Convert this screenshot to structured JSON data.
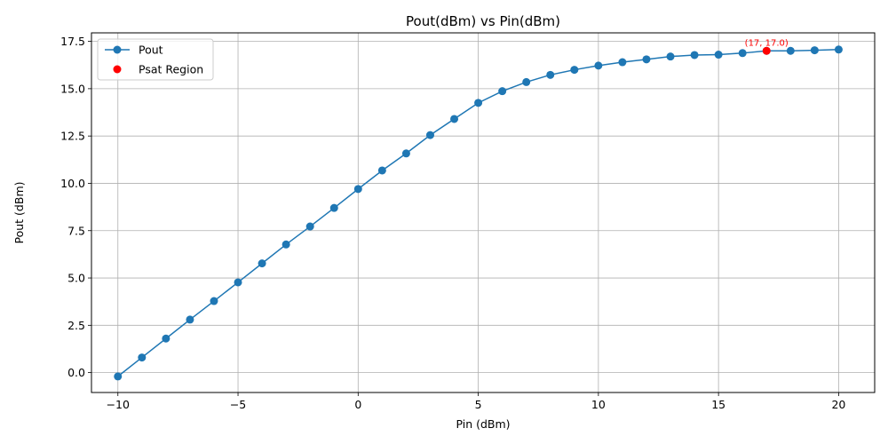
{
  "chart_data": {
    "type": "line",
    "title": "Pout(dBm) vs Pin(dBm)",
    "xlabel": "Pin (dBm)",
    "ylabel": "Pout (dBm)",
    "xlim": [
      -11.1,
      21.5
    ],
    "ylim": [
      -1.05,
      17.95
    ],
    "xticks": [
      -10,
      -5,
      0,
      5,
      10,
      15,
      20
    ],
    "xtick_labels": [
      "−10",
      "−5",
      "0",
      "5",
      "10",
      "15",
      "20"
    ],
    "yticks": [
      0.0,
      2.5,
      5.0,
      7.5,
      10.0,
      12.5,
      15.0,
      17.5
    ],
    "ytick_labels": [
      "0.0",
      "2.5",
      "5.0",
      "7.5",
      "10.0",
      "12.5",
      "15.0",
      "17.5"
    ],
    "grid": true,
    "legend_position": "top-left",
    "series": [
      {
        "name": "Pout",
        "color": "#1f77b4",
        "marker": "circle",
        "x": [
          -10,
          -9,
          -8,
          -7,
          -6,
          -5,
          -4,
          -3,
          -2,
          -1,
          0,
          1,
          2,
          3,
          4,
          5,
          6,
          7,
          8,
          9,
          10,
          11,
          12,
          13,
          14,
          15,
          16,
          17,
          18,
          19,
          20
        ],
        "y": [
          -0.2,
          0.8,
          1.8,
          2.8,
          3.78,
          4.77,
          5.77,
          6.77,
          7.72,
          8.7,
          9.7,
          10.68,
          11.58,
          12.55,
          13.4,
          14.25,
          14.87,
          15.35,
          15.73,
          16.0,
          16.22,
          16.4,
          16.55,
          16.7,
          16.78,
          16.8,
          16.88,
          17.0,
          17.0,
          17.03,
          17.07
        ]
      },
      {
        "name": "Psat Region",
        "color": "#ff0000",
        "marker": "circle",
        "x": [
          17
        ],
        "y": [
          17.0
        ]
      }
    ],
    "annotations": [
      {
        "text": "(17, 17.0)",
        "x": 17,
        "y": 17.0,
        "color": "#ff0000"
      }
    ]
  }
}
